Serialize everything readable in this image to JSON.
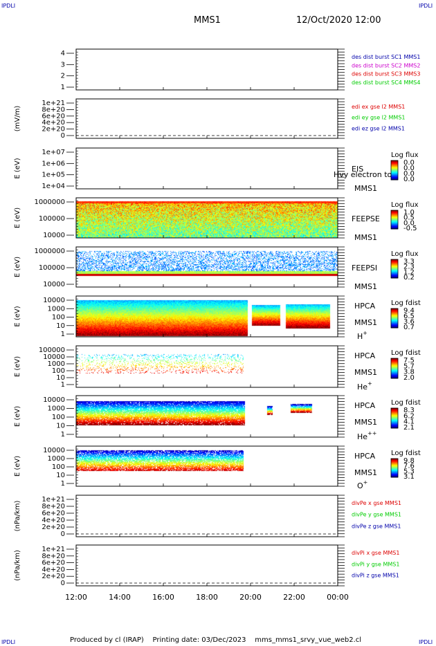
{
  "header": {
    "corner_label": "IPDLI",
    "spacecraft": "MMS1",
    "datetime": "12/Oct/2020 12:00"
  },
  "footer": {
    "produced_by": "Produced by cl (IRAP)",
    "printing_date": "Printing date: 03/Dec/2023",
    "script_name": "mms_mms1_srvy_vue_web2.cl"
  },
  "colors": {
    "mms1": "#0000aa",
    "mms2": "#cc00cc",
    "mms3": "#dd0000",
    "mms4": "#00cc00",
    "comp_x": "#dd0000",
    "comp_y": "#00cc00",
    "comp_z": "#0000aa"
  },
  "chart_data": [
    {
      "id": "panel1",
      "type": "line",
      "yticks": [
        "4",
        "3",
        "2",
        "1"
      ],
      "legend": [
        {
          "text": "des dist burst SC1 MMS1",
          "color": "#0000aa"
        },
        {
          "text": "des dist burst SC2 MMS2",
          "color": "#cc00cc"
        },
        {
          "text": "des dist burst SC3 MMS3",
          "color": "#dd0000"
        },
        {
          "text": "des dist burst SC4 MMS4",
          "color": "#00cc00"
        }
      ],
      "series": []
    },
    {
      "id": "panel2",
      "type": "line",
      "ylabel": "(mV/m)",
      "yticks": [
        "1e+21",
        "8e+20",
        "6e+20",
        "4e+20",
        "2e+20",
        "0"
      ],
      "legend": [
        {
          "text": "edi ex gse l2 MMS1",
          "color": "#dd0000"
        },
        {
          "text": "edi ey gse l2 MMS1",
          "color": "#00cc00"
        },
        {
          "text": "edi ez gse l2 MMS1",
          "color": "#0000aa"
        }
      ],
      "series": []
    },
    {
      "id": "panel3",
      "type": "heatmap",
      "ylabel": "E (eV)",
      "yticks": [
        "1e+07",
        "1e+06",
        "1e+05",
        "1e+04"
      ],
      "instrument": "EIS",
      "spacecraft": "MMS1",
      "overlay_text": "Hvy electron to",
      "colorbar_title": "Log flux",
      "colorbar_ticks": [
        "0.0",
        "0.0",
        "0.0",
        "0.0"
      ]
    },
    {
      "id": "panel4",
      "type": "heatmap",
      "ylabel": "E (eV)",
      "yticks": [
        "1000000",
        "100000",
        "10000"
      ],
      "instrument": "FEEPSE",
      "spacecraft": "MMS1",
      "colorbar_title": "Log flux",
      "colorbar_ticks": [
        "1.0",
        "0.5",
        "0.0",
        "-0.5"
      ]
    },
    {
      "id": "panel5",
      "type": "heatmap",
      "ylabel": "E (eV)",
      "yticks": [
        "1000000",
        "100000",
        "10000"
      ],
      "instrument": "FEEPSI",
      "spacecraft": "MMS1",
      "colorbar_title": "Log flux",
      "colorbar_ticks": [
        "3.3",
        "2.3",
        "1.2",
        "0.2"
      ]
    },
    {
      "id": "panel6",
      "type": "heatmap",
      "ylabel": "E (eV)",
      "yticks": [
        "10000",
        "1000",
        "100",
        "10",
        "1"
      ],
      "instrument": "HPCA",
      "spacecraft": "MMS1",
      "species": "H",
      "charge": "+",
      "colorbar_title": "Log fdist",
      "colorbar_ticks": [
        "9.4",
        "6.5",
        "3.6",
        "0.7"
      ]
    },
    {
      "id": "panel7",
      "type": "heatmap",
      "ylabel": "E (eV)",
      "yticks": [
        "100000",
        "10000",
        "1000",
        "100",
        "10",
        "1"
      ],
      "instrument": "HPCA",
      "spacecraft": "MMS1",
      "species": "He",
      "charge": "+",
      "colorbar_title": "Log fdist",
      "colorbar_ticks": [
        "7.5",
        "5.7",
        "3.8",
        "2.0"
      ]
    },
    {
      "id": "panel8",
      "type": "heatmap",
      "ylabel": "E (eV)",
      "yticks": [
        "10000",
        "1000",
        "100",
        "10",
        "1"
      ],
      "instrument": "HPCA",
      "spacecraft": "MMS1",
      "species": "He",
      "charge": "++",
      "colorbar_title": "Log fdist",
      "colorbar_ticks": [
        "8.3",
        "6.2",
        "4.1",
        "2.1"
      ]
    },
    {
      "id": "panel9",
      "type": "heatmap",
      "ylabel": "E (eV)",
      "yticks": [
        "10000",
        "1000",
        "100",
        "10",
        "1"
      ],
      "instrument": "HPCA",
      "spacecraft": "MMS1",
      "species": "O",
      "charge": "+",
      "colorbar_title": "Log fdist",
      "colorbar_ticks": [
        "9.8",
        "7.6",
        "5.3",
        "3.1"
      ]
    },
    {
      "id": "panel10",
      "type": "line",
      "ylabel": "(nPa/km)",
      "yticks": [
        "1e+21",
        "8e+20",
        "6e+20",
        "4e+20",
        "2e+20",
        "0"
      ],
      "legend": [
        {
          "text": "divPe x gse MMS1",
          "color": "#dd0000"
        },
        {
          "text": "divPe y gse MMS1",
          "color": "#00cc00"
        },
        {
          "text": "divPe z gse MMS1",
          "color": "#0000aa"
        }
      ],
      "series": []
    },
    {
      "id": "panel11",
      "type": "line",
      "ylabel": "(nPa/km)",
      "yticks": [
        "1e+21",
        "8e+20",
        "6e+20",
        "4e+20",
        "2e+20",
        "0"
      ],
      "xticks": [
        "12:00",
        "14:00",
        "16:00",
        "18:00",
        "20:00",
        "22:00",
        "00:00"
      ],
      "legend": [
        {
          "text": "divPi x gse MMS1",
          "color": "#dd0000"
        },
        {
          "text": "divPi y gse MMS1",
          "color": "#00cc00"
        },
        {
          "text": "divPi z gse MMS1",
          "color": "#0000aa"
        }
      ],
      "series": []
    }
  ]
}
